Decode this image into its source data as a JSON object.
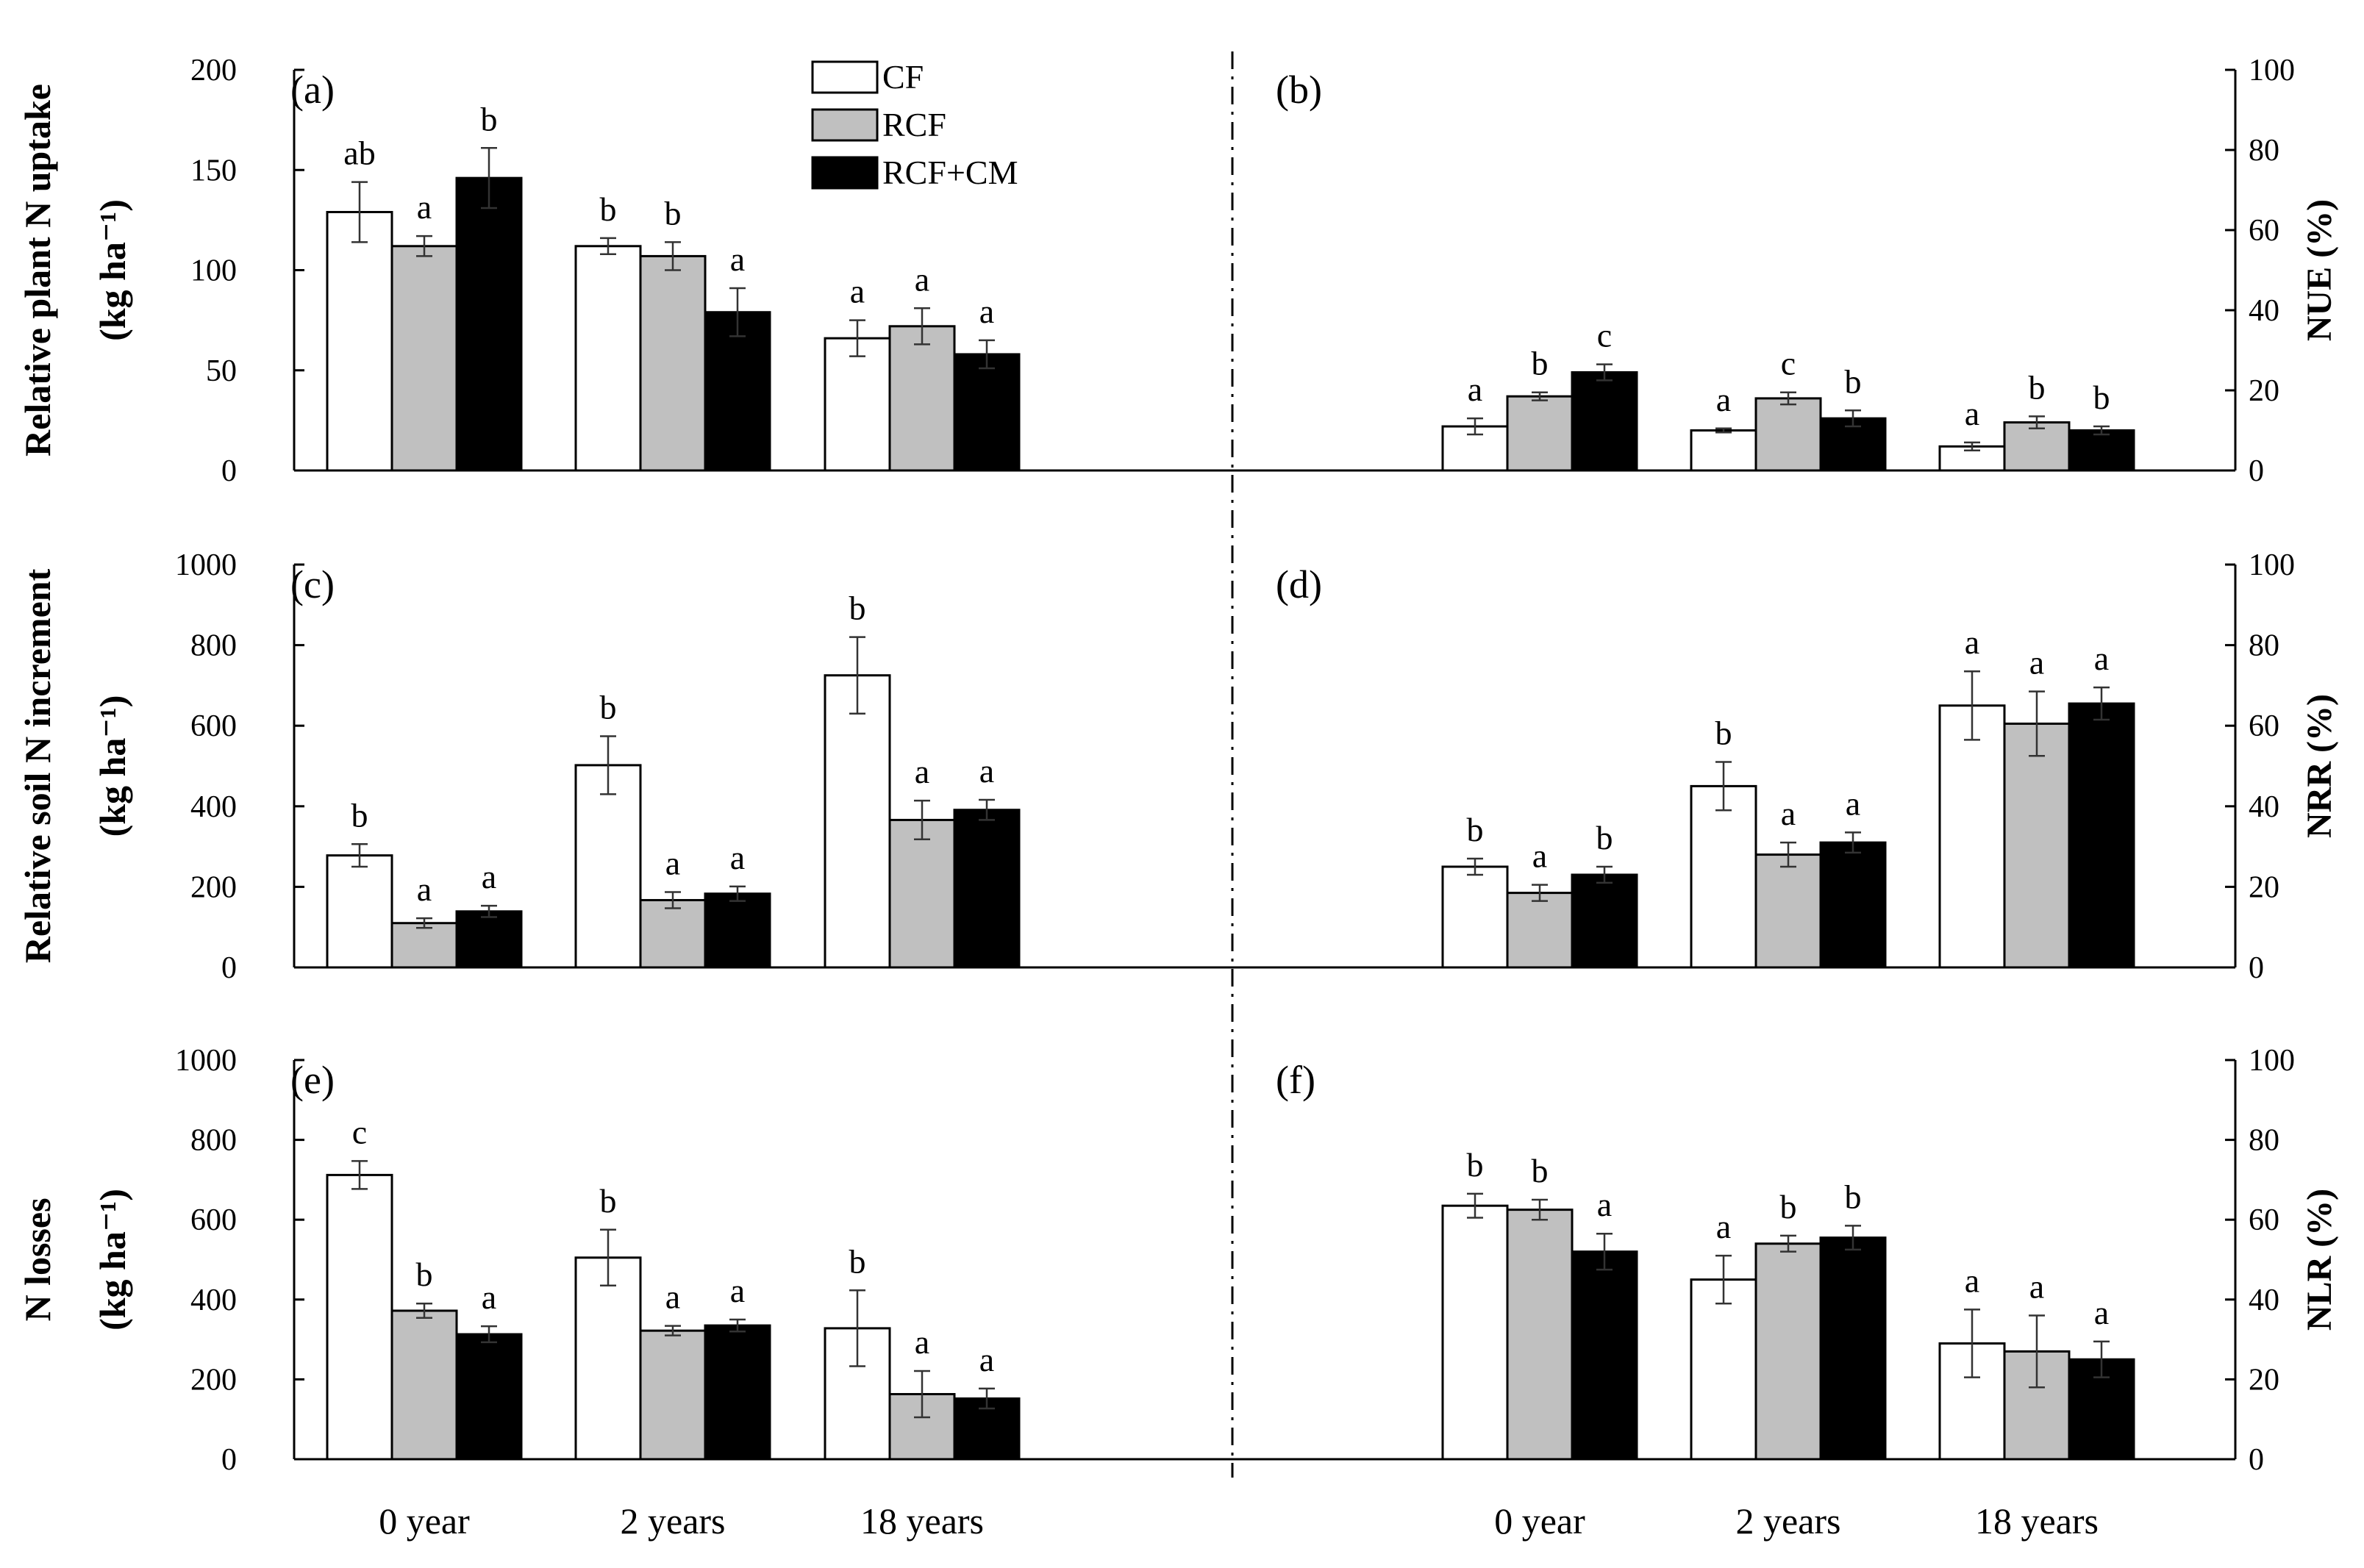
{
  "colors": {
    "CF": "#ffffff",
    "RCF": "#c0c0c0",
    "RCF+CM": "#000000",
    "axis": "#000000"
  },
  "legend": [
    "CF",
    "RCF",
    "RCF+CM"
  ],
  "chart_data": [
    {
      "id": "a",
      "label": "(a)",
      "type": "bar",
      "ylabel_line1": "Relative plant N uptake",
      "ylabel_line2": "(kg ha⁻¹)",
      "ylim": [
        0,
        200
      ],
      "yticks": [
        0,
        50,
        100,
        150,
        200
      ],
      "categories": [
        "0 year",
        "2 years",
        "18 years"
      ],
      "series": [
        {
          "name": "CF",
          "values": [
            129,
            112,
            66
          ],
          "errors": [
            15,
            4,
            9
          ],
          "letters": [
            "ab",
            "b",
            "a"
          ]
        },
        {
          "name": "RCF",
          "values": [
            112,
            107,
            72
          ],
          "errors": [
            5,
            7,
            9
          ],
          "letters": [
            "a",
            "b",
            "a"
          ]
        },
        {
          "name": "RCF+CM",
          "values": [
            146,
            79,
            58
          ],
          "errors": [
            15,
            12,
            7
          ],
          "letters": [
            "b",
            "a",
            "a"
          ]
        }
      ]
    },
    {
      "id": "b",
      "label": "(b)",
      "type": "bar",
      "ylabel": "NUE (%)",
      "ylim": [
        0,
        100
      ],
      "yticks": [
        0,
        20,
        40,
        60,
        80,
        100
      ],
      "categories": [
        "0 year",
        "2 years",
        "18 years"
      ],
      "series": [
        {
          "name": "CF",
          "values": [
            11,
            10,
            6
          ],
          "errors": [
            2,
            0.5,
            1
          ],
          "letters": [
            "a",
            "a",
            "a"
          ]
        },
        {
          "name": "RCF",
          "values": [
            18.5,
            18,
            12
          ],
          "errors": [
            1,
            1.5,
            1.5
          ],
          "letters": [
            "b",
            "c",
            "b"
          ]
        },
        {
          "name": "RCF+CM",
          "values": [
            24.5,
            13,
            10
          ],
          "errors": [
            2,
            2,
            1
          ],
          "letters": [
            "c",
            "b",
            "b"
          ]
        }
      ]
    },
    {
      "id": "c",
      "label": "(c)",
      "type": "bar",
      "ylabel_line1": "Relative soil N increment",
      "ylabel_line2": "(kg ha⁻¹)",
      "ylim": [
        0,
        1000
      ],
      "yticks": [
        0,
        200,
        400,
        600,
        800,
        1000
      ],
      "categories": [
        "0 year",
        "2 years",
        "18 years"
      ],
      "series": [
        {
          "name": "CF",
          "values": [
            278,
            502,
            725
          ],
          "errors": [
            28,
            72,
            95
          ],
          "letters": [
            "b",
            "b",
            "b"
          ]
        },
        {
          "name": "RCF",
          "values": [
            110,
            167,
            366
          ],
          "errors": [
            12,
            20,
            48
          ],
          "letters": [
            "a",
            "a",
            "a"
          ]
        },
        {
          "name": "RCF+CM",
          "values": [
            139,
            183,
            391
          ],
          "errors": [
            14,
            18,
            25
          ],
          "letters": [
            "a",
            "a",
            "a"
          ]
        }
      ]
    },
    {
      "id": "d",
      "label": "(d)",
      "type": "bar",
      "ylabel": "NRR (%)",
      "ylim": [
        0,
        100
      ],
      "yticks": [
        0,
        20,
        40,
        60,
        80,
        100
      ],
      "categories": [
        "0 year",
        "2 years",
        "18 years"
      ],
      "series": [
        {
          "name": "CF",
          "values": [
            25,
            45,
            65
          ],
          "errors": [
            2,
            6,
            8.5
          ],
          "letters": [
            "b",
            "b",
            "a"
          ]
        },
        {
          "name": "RCF",
          "values": [
            18.5,
            28,
            60.5
          ],
          "errors": [
            2,
            3,
            8
          ],
          "letters": [
            "a",
            "a",
            "a"
          ]
        },
        {
          "name": "RCF+CM",
          "values": [
            23,
            31,
            65.5
          ],
          "errors": [
            2,
            2.5,
            4
          ],
          "letters": [
            "b",
            "a",
            "a"
          ]
        }
      ]
    },
    {
      "id": "e",
      "label": "(e)",
      "type": "bar",
      "ylabel_line1": "N losses",
      "ylabel_line2": "(kg ha⁻¹)",
      "ylim": [
        0,
        1000
      ],
      "yticks": [
        0,
        200,
        400,
        600,
        800,
        1000
      ],
      "categories": [
        "0 year",
        "2 years",
        "18 years"
      ],
      "series": [
        {
          "name": "CF",
          "values": [
            712,
            505,
            328
          ],
          "errors": [
            35,
            70,
            95
          ],
          "letters": [
            "c",
            "b",
            "b"
          ]
        },
        {
          "name": "RCF",
          "values": [
            372,
            322,
            163
          ],
          "errors": [
            18,
            12,
            58
          ],
          "letters": [
            "b",
            "a",
            "a"
          ]
        },
        {
          "name": "RCF+CM",
          "values": [
            313,
            335,
            152
          ],
          "errors": [
            20,
            15,
            25
          ],
          "letters": [
            "a",
            "a",
            "a"
          ]
        }
      ]
    },
    {
      "id": "f",
      "label": "(f)",
      "type": "bar",
      "ylabel": "NLR (%)",
      "ylim": [
        0,
        100
      ],
      "yticks": [
        0,
        20,
        40,
        60,
        80,
        100
      ],
      "categories": [
        "0 year",
        "2 years",
        "18 years"
      ],
      "series": [
        {
          "name": "CF",
          "values": [
            63.5,
            45,
            29
          ],
          "errors": [
            3,
            6,
            8.5
          ],
          "letters": [
            "b",
            "a",
            "a"
          ]
        },
        {
          "name": "RCF",
          "values": [
            62.5,
            54,
            27
          ],
          "errors": [
            2.5,
            2,
            9
          ],
          "letters": [
            "b",
            "b",
            "a"
          ]
        },
        {
          "name": "RCF+CM",
          "values": [
            52,
            55.5,
            25
          ],
          "errors": [
            4.5,
            3,
            4.5
          ],
          "letters": [
            "a",
            "b",
            "a"
          ]
        }
      ]
    }
  ]
}
